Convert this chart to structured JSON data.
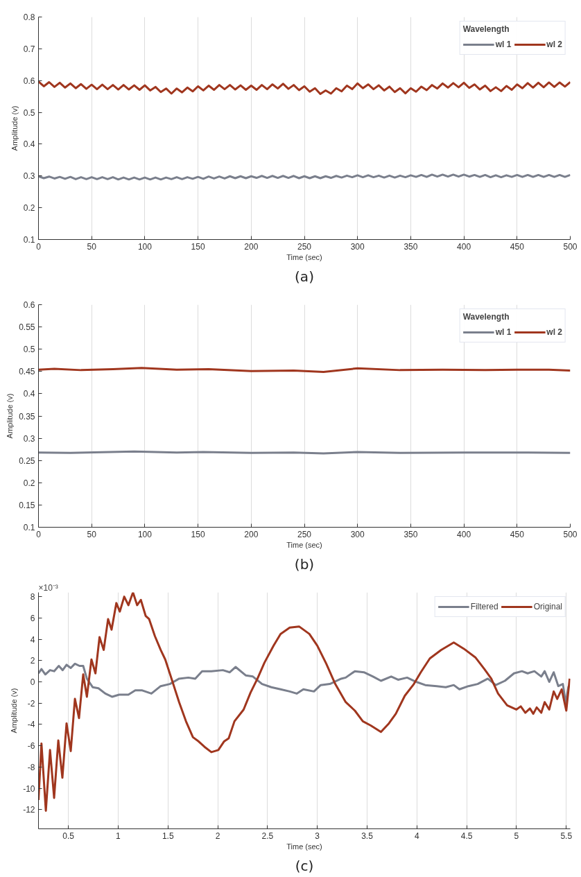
{
  "chart_data": [
    {
      "type": "line",
      "xlabel": "Time (sec)",
      "ylabel": "Amplitude (v)",
      "legend_title": "Wavelength",
      "legend": "top right",
      "grid": "x",
      "line_style": "solid",
      "marker": "none",
      "xlim": [
        0,
        500
      ],
      "ylim": [
        0.1,
        0.8
      ],
      "xticks": [
        0,
        50,
        100,
        150,
        200,
        250,
        300,
        350,
        400,
        450,
        500
      ],
      "yticks": [
        0.1,
        0.2,
        0.3,
        0.4,
        0.5,
        0.6,
        0.7,
        0.8
      ],
      "x": [
        0,
        5,
        10,
        15,
        20,
        25,
        30,
        35,
        40,
        45,
        50,
        55,
        60,
        65,
        70,
        75,
        80,
        85,
        90,
        95,
        100,
        105,
        110,
        115,
        120,
        125,
        130,
        135,
        140,
        145,
        150,
        155,
        160,
        165,
        170,
        175,
        180,
        185,
        190,
        195,
        200,
        205,
        210,
        215,
        220,
        225,
        230,
        235,
        240,
        245,
        250,
        255,
        260,
        265,
        270,
        275,
        280,
        285,
        290,
        295,
        300,
        305,
        310,
        315,
        320,
        325,
        330,
        335,
        340,
        345,
        350,
        355,
        360,
        365,
        370,
        375,
        380,
        385,
        390,
        395,
        400,
        405,
        410,
        415,
        420,
        425,
        430,
        435,
        440,
        445,
        450,
        455,
        460,
        465,
        470,
        475,
        480,
        485,
        490,
        495,
        500
      ],
      "series": [
        {
          "name": "wl 1",
          "color": "#7a7f8c",
          "values": [
            0.299,
            0.293,
            0.298,
            0.292,
            0.297,
            0.291,
            0.297,
            0.29,
            0.296,
            0.29,
            0.296,
            0.29,
            0.296,
            0.29,
            0.296,
            0.289,
            0.295,
            0.289,
            0.295,
            0.289,
            0.295,
            0.289,
            0.295,
            0.289,
            0.295,
            0.29,
            0.296,
            0.29,
            0.296,
            0.291,
            0.297,
            0.291,
            0.298,
            0.292,
            0.298,
            0.292,
            0.299,
            0.293,
            0.299,
            0.293,
            0.299,
            0.294,
            0.3,
            0.294,
            0.3,
            0.294,
            0.3,
            0.294,
            0.3,
            0.293,
            0.299,
            0.293,
            0.299,
            0.293,
            0.299,
            0.294,
            0.3,
            0.295,
            0.301,
            0.296,
            0.302,
            0.296,
            0.302,
            0.296,
            0.301,
            0.295,
            0.301,
            0.295,
            0.301,
            0.296,
            0.302,
            0.297,
            0.303,
            0.297,
            0.304,
            0.298,
            0.304,
            0.298,
            0.304,
            0.298,
            0.304,
            0.298,
            0.303,
            0.297,
            0.303,
            0.296,
            0.302,
            0.296,
            0.302,
            0.297,
            0.303,
            0.297,
            0.303,
            0.297,
            0.303,
            0.297,
            0.303,
            0.297,
            0.303,
            0.297,
            0.303
          ]
        },
        {
          "name": "wl 2",
          "color": "#a0361e",
          "values": [
            0.597,
            0.582,
            0.595,
            0.58,
            0.593,
            0.578,
            0.591,
            0.576,
            0.589,
            0.574,
            0.587,
            0.573,
            0.587,
            0.573,
            0.586,
            0.572,
            0.586,
            0.572,
            0.585,
            0.571,
            0.585,
            0.569,
            0.58,
            0.564,
            0.575,
            0.559,
            0.575,
            0.563,
            0.578,
            0.566,
            0.582,
            0.569,
            0.584,
            0.571,
            0.586,
            0.573,
            0.586,
            0.572,
            0.585,
            0.571,
            0.584,
            0.571,
            0.586,
            0.573,
            0.588,
            0.575,
            0.59,
            0.574,
            0.586,
            0.57,
            0.582,
            0.565,
            0.576,
            0.558,
            0.569,
            0.559,
            0.576,
            0.566,
            0.584,
            0.573,
            0.591,
            0.576,
            0.588,
            0.573,
            0.585,
            0.569,
            0.581,
            0.564,
            0.576,
            0.56,
            0.576,
            0.565,
            0.581,
            0.57,
            0.586,
            0.575,
            0.591,
            0.578,
            0.592,
            0.579,
            0.593,
            0.577,
            0.588,
            0.572,
            0.584,
            0.567,
            0.579,
            0.567,
            0.583,
            0.571,
            0.588,
            0.576,
            0.592,
            0.578,
            0.593,
            0.579,
            0.594,
            0.58,
            0.594,
            0.581,
            0.595
          ]
        }
      ],
      "annotations": [
        "(a)"
      ]
    },
    {
      "type": "line",
      "xlabel": "Time (sec)",
      "ylabel": "Amplitude (v)",
      "legend_title": "Wavelength",
      "legend": "top right",
      "grid": "x",
      "line_style": "solid",
      "marker": "none",
      "xlim": [
        0,
        500
      ],
      "ylim": [
        0.1,
        0.6
      ],
      "xticks": [
        0,
        50,
        100,
        150,
        200,
        250,
        300,
        350,
        400,
        450,
        500
      ],
      "yticks": [
        0.1,
        0.15,
        0.2,
        0.25,
        0.3,
        0.35,
        0.4,
        0.45,
        0.5,
        0.55,
        0.6
      ],
      "series": [
        {
          "name": "wl 1",
          "color": "#7a7f8c",
          "x": [
            0,
            30,
            90,
            130,
            155,
            200,
            240,
            268,
            300,
            340,
            400,
            450,
            500
          ],
          "values": [
            0.268,
            0.267,
            0.27,
            0.268,
            0.269,
            0.267,
            0.268,
            0.266,
            0.269,
            0.267,
            0.268,
            0.268,
            0.267
          ]
        },
        {
          "name": "wl 2",
          "color": "#a0361e",
          "x": [
            0,
            15,
            40,
            70,
            97,
            130,
            160,
            200,
            240,
            268,
            300,
            340,
            380,
            420,
            450,
            480,
            500
          ],
          "values": [
            0.454,
            0.456,
            0.453,
            0.455,
            0.458,
            0.454,
            0.455,
            0.451,
            0.452,
            0.449,
            0.457,
            0.453,
            0.454,
            0.453,
            0.454,
            0.454,
            0.452
          ]
        }
      ],
      "annotations": [
        "(b)"
      ]
    },
    {
      "type": "line",
      "xlabel": "Time (sec)",
      "ylabel": "Amplitude (v)",
      "legend": "top right",
      "grid": "x",
      "line_style": "solid",
      "marker": "none",
      "xlim": [
        0.2,
        5.54
      ],
      "ylim": [
        -13.8,
        8.4
      ],
      "xticks": [
        0.5,
        1,
        1.5,
        2,
        2.5,
        3,
        3.5,
        4,
        4.5,
        5,
        5.5
      ],
      "yticks": [
        -12,
        -10,
        -8,
        -6,
        -4,
        -2,
        0,
        2,
        4,
        6,
        8
      ],
      "series": [
        {
          "name": "Filtered",
          "color": "#7a7f8c",
          "x": [
            0.2,
            0.23,
            0.269,
            0.316,
            0.357,
            0.404,
            0.443,
            0.482,
            0.524,
            0.566,
            0.612,
            0.649,
            0.686,
            0.744,
            0.802,
            0.871,
            0.941,
            1.01,
            1.103,
            1.172,
            1.242,
            1.334,
            1.427,
            1.519,
            1.612,
            1.705,
            1.774,
            1.843,
            1.936,
            2.052,
            2.121,
            2.179,
            2.283,
            2.353,
            2.445,
            2.538,
            2.631,
            2.723,
            2.793,
            2.86,
            2.966,
            3.034,
            3.126,
            3.24,
            3.285,
            3.377,
            3.468,
            3.559,
            3.639,
            3.742,
            3.811,
            3.902,
            3.993,
            4.084,
            4.199,
            4.29,
            4.37,
            4.427,
            4.518,
            4.61,
            4.712,
            4.792,
            4.884,
            4.975,
            5.055,
            5.112,
            5.18,
            5.249,
            5.283,
            5.329,
            5.374,
            5.42,
            5.466,
            5.495,
            5.523
          ],
          "values": [
            0.8,
            1.2,
            0.7,
            1.1,
            1.0,
            1.5,
            1.1,
            1.6,
            1.3,
            1.7,
            1.5,
            1.5,
            0.3,
            -0.5,
            -0.6,
            -1.1,
            -1.4,
            -1.2,
            -1.2,
            -0.8,
            -0.8,
            -1.1,
            -0.4,
            -0.2,
            0.3,
            0.4,
            0.3,
            1.0,
            1.0,
            1.1,
            0.9,
            1.4,
            0.6,
            0.5,
            -0.2,
            -0.5,
            -0.7,
            -0.9,
            -1.1,
            -0.7,
            -0.9,
            -0.3,
            -0.2,
            0.3,
            0.4,
            1.0,
            0.9,
            0.5,
            0.1,
            0.5,
            0.2,
            0.4,
            0.0,
            -0.3,
            -0.4,
            -0.5,
            -0.3,
            -0.7,
            -0.4,
            -0.2,
            0.3,
            -0.3,
            0.1,
            0.8,
            1.0,
            0.8,
            1.0,
            0.5,
            1.0,
            0.0,
            0.9,
            -0.4,
            -0.2,
            -2.0,
            -0.4
          ]
        },
        {
          "name": "Original",
          "color": "#a0361e",
          "x": [
            0.2,
            0.23,
            0.274,
            0.316,
            0.357,
            0.399,
            0.44,
            0.482,
            0.524,
            0.566,
            0.607,
            0.649,
            0.686,
            0.732,
            0.772,
            0.813,
            0.855,
            0.899,
            0.934,
            0.982,
            1.017,
            1.061,
            1.103,
            1.149,
            1.191,
            1.228,
            1.276,
            1.311,
            1.369,
            1.427,
            1.473,
            1.543,
            1.612,
            1.681,
            1.751,
            1.809,
            1.867,
            1.936,
            2.006,
            2.063,
            2.11,
            2.168,
            2.26,
            2.33,
            2.399,
            2.469,
            2.561,
            2.631,
            2.723,
            2.817,
            2.92,
            3.0,
            3.09,
            3.18,
            3.285,
            3.377,
            3.457,
            3.537,
            3.639,
            3.719,
            3.788,
            3.879,
            3.97,
            4.039,
            4.13,
            4.244,
            4.37,
            4.473,
            4.587,
            4.678,
            4.747,
            4.815,
            4.906,
            4.998,
            5.043,
            5.089,
            5.135,
            5.169,
            5.203,
            5.249,
            5.283,
            5.329,
            5.374,
            5.409,
            5.454,
            5.5,
            5.534
          ],
          "values": [
            -11.1,
            -5.8,
            -12.1,
            -6.4,
            -10.9,
            -5.5,
            -9.0,
            -3.9,
            -6.5,
            -1.6,
            -3.4,
            0.7,
            -1.4,
            2.1,
            0.8,
            4.2,
            3.0,
            5.9,
            4.9,
            7.4,
            6.6,
            8.0,
            7.2,
            8.4,
            7.2,
            7.7,
            6.2,
            5.9,
            4.3,
            3.0,
            2.1,
            0.1,
            -1.9,
            -3.7,
            -5.2,
            -5.6,
            -6.1,
            -6.6,
            -6.4,
            -5.6,
            -5.3,
            -3.7,
            -2.6,
            -1.0,
            0.3,
            1.8,
            3.4,
            4.5,
            5.1,
            5.2,
            4.5,
            3.4,
            1.7,
            -0.2,
            -1.9,
            -2.7,
            -3.7,
            -4.1,
            -4.7,
            -3.9,
            -3.0,
            -1.3,
            -0.2,
            0.9,
            2.2,
            3.0,
            3.7,
            3.1,
            2.3,
            1.2,
            0.3,
            -1.1,
            -2.2,
            -2.6,
            -2.3,
            -2.9,
            -2.5,
            -3.0,
            -2.4,
            -2.9,
            -1.9,
            -2.6,
            -0.9,
            -1.6,
            -0.7,
            -2.7,
            0.3
          ]
        }
      ],
      "annotations": [
        "×10⁻³",
        "(c)"
      ]
    }
  ]
}
